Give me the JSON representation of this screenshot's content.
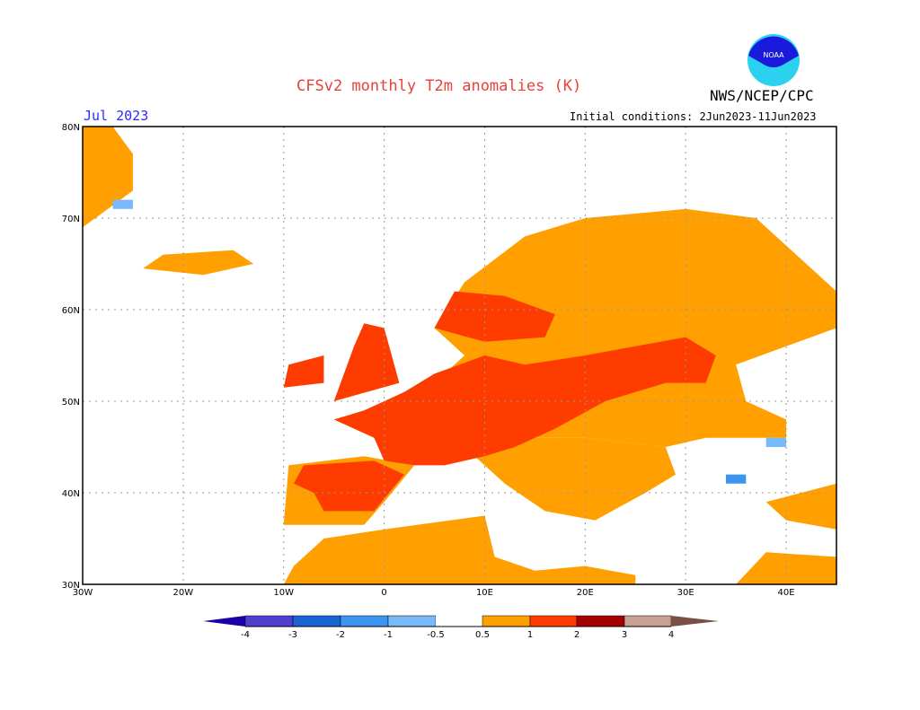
{
  "header": {
    "title": "CFSv2 monthly T2m anomalies (K)",
    "organization": "NWS/NCEP/CPC",
    "logo_text": "NOAA",
    "month": "Jul 2023",
    "initial_conditions": "Initial conditions: 2Jun2023-11Jun2023"
  },
  "map": {
    "lon_range": [
      -30,
      45
    ],
    "lat_range": [
      30,
      80
    ],
    "lon_ticks": [
      {
        "v": -30,
        "label": "30W"
      },
      {
        "v": -20,
        "label": "20W"
      },
      {
        "v": -10,
        "label": "10W"
      },
      {
        "v": 0,
        "label": "0"
      },
      {
        "v": 10,
        "label": "10E"
      },
      {
        "v": 20,
        "label": "20E"
      },
      {
        "v": 30,
        "label": "30E"
      },
      {
        "v": 40,
        "label": "40E"
      }
    ],
    "lat_ticks": [
      {
        "v": 30,
        "label": "30N"
      },
      {
        "v": 40,
        "label": "40N"
      },
      {
        "v": 50,
        "label": "50N"
      },
      {
        "v": 60,
        "label": "60N"
      },
      {
        "v": 70,
        "label": "70N"
      },
      {
        "v": 80,
        "label": "80N"
      }
    ],
    "grid": true
  },
  "colorbar": {
    "labels": [
      "-4",
      "-3",
      "-2",
      "-1",
      "-0.5",
      "0.5",
      "1",
      "2",
      "3",
      "4"
    ],
    "colors": [
      "#1e00a8",
      "#5040d0",
      "#1964d2",
      "#3c96f0",
      "#78b9fa",
      "#ffffff",
      "#ffa000",
      "#ff3c00",
      "#a50000",
      "#c8a096",
      "#785046"
    ]
  }
}
